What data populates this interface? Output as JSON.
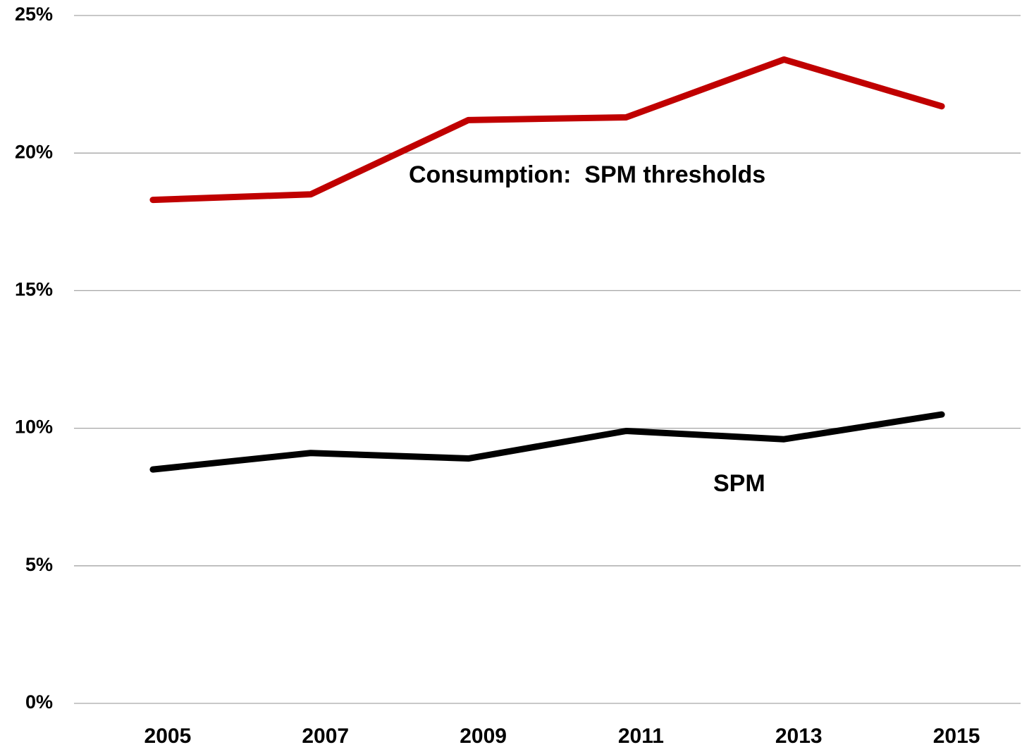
{
  "chart_data": {
    "type": "line",
    "categories": [
      "2005",
      "2007",
      "2009",
      "2011",
      "2013",
      "2015"
    ],
    "series": [
      {
        "name": "Consumption:  SPM thresholds",
        "color": "#c00000",
        "values": [
          18.3,
          18.5,
          21.2,
          21.3,
          23.4,
          21.7
        ]
      },
      {
        "name": "SPM",
        "color": "#000000",
        "values": [
          8.5,
          9.1,
          8.9,
          9.9,
          9.6,
          10.5
        ]
      }
    ],
    "ylim": [
      0,
      25
    ],
    "yticks": [
      {
        "value": 0,
        "label": "0%"
      },
      {
        "value": 5,
        "label": "5%"
      },
      {
        "value": 10,
        "label": "10%"
      },
      {
        "value": 15,
        "label": "15%"
      },
      {
        "value": 20,
        "label": "20%"
      },
      {
        "value": 25,
        "label": "25%"
      }
    ],
    "grid": true
  }
}
